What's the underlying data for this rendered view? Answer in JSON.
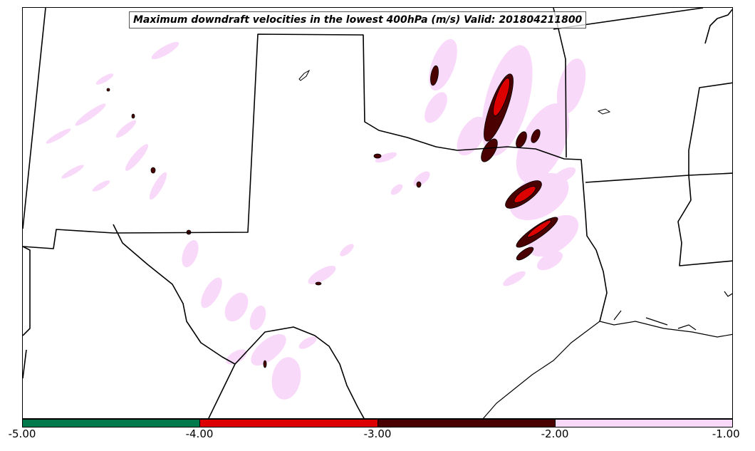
{
  "title": "Maximum downdraft velocities in the lowest 400hPa (m/s) Valid: 201804211800",
  "colors": {
    "light": "#f9d9f9",
    "dark": "#4a0000",
    "red": "#dd0000",
    "green": "#007a4d",
    "border": "#000000"
  },
  "colorbar": {
    "ticks": [
      "-5.00",
      "-4.00",
      "-3.00",
      "-2.00",
      "-1.00"
    ],
    "segments": [
      {
        "name": "green",
        "color": "#007a4d"
      },
      {
        "name": "red",
        "color": "#dd0000"
      },
      {
        "name": "dark-red",
        "color": "#4a0000"
      },
      {
        "name": "light-pink",
        "color": "#f9d9f9"
      }
    ]
  }
}
